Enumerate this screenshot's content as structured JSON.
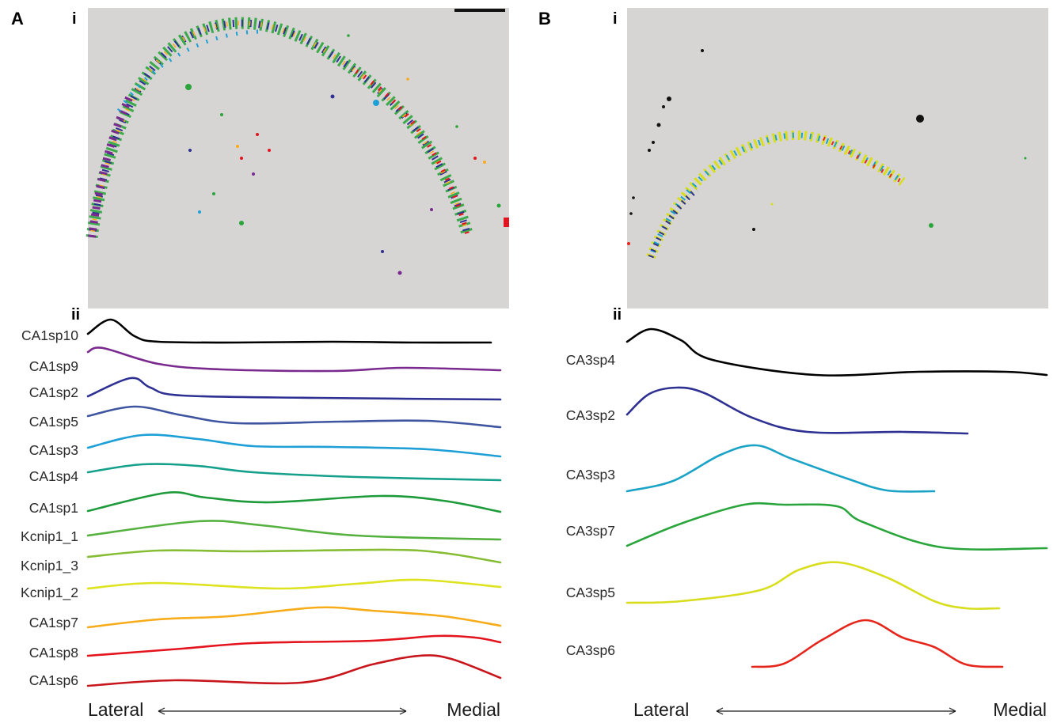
{
  "panels": [
    {
      "letter": "A",
      "map_label": "i",
      "profiles_label": "ii",
      "axis": {
        "left": "Lateral",
        "right": "Medial"
      },
      "traces": [
        {
          "label": "CA1sp10",
          "color": "#000000"
        },
        {
          "label": "CA1sp9",
          "color": "#7a2a8e"
        },
        {
          "label": "CA1sp2",
          "color": "#2e3192"
        },
        {
          "label": "CA1sp5",
          "color": "#3f55a0"
        },
        {
          "label": "CA1sp3",
          "color": "#1e9fd6"
        },
        {
          "label": "CA1sp4",
          "color": "#14a08a"
        },
        {
          "label": "CA1sp1",
          "color": "#1d9a3a"
        },
        {
          "label": "Kcnip1_1",
          "color": "#55b13f"
        },
        {
          "label": "Kcnip1_3",
          "color": "#86bd35"
        },
        {
          "label": "Kcnip1_2",
          "color": "#dde31f"
        },
        {
          "label": "CA1sp7",
          "color": "#f7ac1a"
        },
        {
          "label": "CA1sp8",
          "color": "#e3141d"
        },
        {
          "label": "CA1sp6",
          "color": "#c8161d"
        }
      ]
    },
    {
      "letter": "B",
      "map_label": "i",
      "profiles_label": "ii",
      "axis": {
        "left": "Lateral",
        "right": "Medial"
      },
      "traces": [
        {
          "label": "CA3sp4",
          "color": "#000000"
        },
        {
          "label": "CA3sp2",
          "color": "#2e3192"
        },
        {
          "label": "CA3sp3",
          "color": "#1aa3c6"
        },
        {
          "label": "CA3sp7",
          "color": "#2aa53c"
        },
        {
          "label": "CA3sp5",
          "color": "#d8de1e"
        },
        {
          "label": "CA3sp6",
          "color": "#e4261c"
        }
      ]
    }
  ]
}
